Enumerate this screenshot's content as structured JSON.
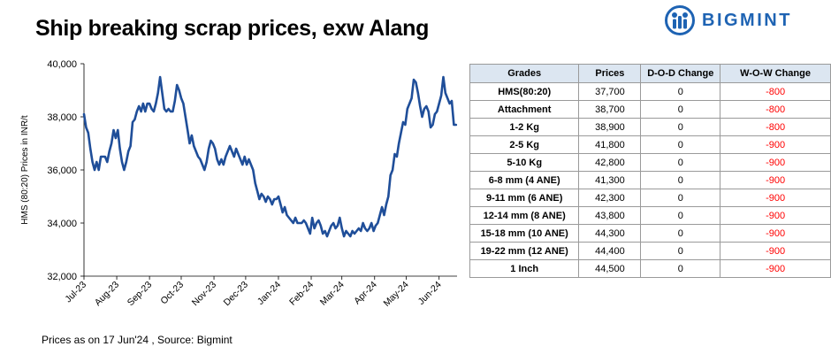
{
  "title": "Ship breaking scrap prices, exw Alang",
  "brand": {
    "name": "BIGMINT",
    "color": "#1e63b3"
  },
  "footer": "Prices as on 17 Jun'24 , Source:  Bigmint",
  "table": {
    "headers": [
      "Grades",
      "Prices",
      "D-O-D Change",
      "W-O-W Change"
    ],
    "rows": [
      [
        "HMS(80:20)",
        "37,700",
        "0",
        "-800"
      ],
      [
        "Attachment",
        "38,700",
        "0",
        "-800"
      ],
      [
        "1-2 Kg",
        "38,900",
        "0",
        "-800"
      ],
      [
        "2-5 Kg",
        "41,800",
        "0",
        "-900"
      ],
      [
        "5-10 Kg",
        "42,800",
        "0",
        "-900"
      ],
      [
        "6-8 mm (4 ANE)",
        "41,300",
        "0",
        "-900"
      ],
      [
        "9-11 mm (6 ANE)",
        "42,300",
        "0",
        "-900"
      ],
      [
        "12-14 mm (8 ANE)",
        "43,800",
        "0",
        "-900"
      ],
      [
        "15-18 mm (10 ANE)",
        "44,300",
        "0",
        "-900"
      ],
      [
        "19-22 mm (12 ANE)",
        "44,400",
        "0",
        "-900"
      ],
      [
        "1 Inch",
        "44,500",
        "0",
        "-900"
      ]
    ],
    "header_bg": "#dce6f1",
    "negative_color": "#ff0000"
  },
  "chart_data": {
    "type": "line",
    "title": "",
    "ylabel": "HMS (80:20) Prices in INR/t",
    "xlabel": "",
    "ylim": [
      32000,
      40000
    ],
    "yticks": [
      32000,
      34000,
      36000,
      38000,
      40000
    ],
    "ytick_labels": [
      "32,000",
      "34,000",
      "36,000",
      "38,000",
      "40,000"
    ],
    "xticks": [
      "Jul-23",
      "Aug-23",
      "Sep-23",
      "Oct-23",
      "Nov-23",
      "Dec-23",
      "Jan-24",
      "Feb-24",
      "Mar-24",
      "Apr-24",
      "May-24",
      "Jun-24"
    ],
    "grid": false,
    "legend": "none",
    "series": [
      {
        "color": "#1f4e99",
        "points": [
          [
            "2023-07-01",
            38100
          ],
          [
            "2023-07-03",
            37600
          ],
          [
            "2023-07-05",
            37400
          ],
          [
            "2023-07-07",
            36800
          ],
          [
            "2023-07-09",
            36300
          ],
          [
            "2023-07-11",
            36000
          ],
          [
            "2023-07-13",
            36300
          ],
          [
            "2023-07-15",
            36000
          ],
          [
            "2023-07-17",
            36500
          ],
          [
            "2023-07-19",
            36500
          ],
          [
            "2023-07-21",
            36500
          ],
          [
            "2023-07-23",
            36300
          ],
          [
            "2023-07-25",
            36700
          ],
          [
            "2023-07-27",
            37000
          ],
          [
            "2023-07-29",
            37500
          ],
          [
            "2023-07-31",
            37200
          ],
          [
            "2023-08-02",
            37500
          ],
          [
            "2023-08-04",
            36800
          ],
          [
            "2023-08-06",
            36300
          ],
          [
            "2023-08-08",
            36000
          ],
          [
            "2023-08-10",
            36300
          ],
          [
            "2023-08-12",
            36700
          ],
          [
            "2023-08-14",
            36900
          ],
          [
            "2023-08-16",
            37800
          ],
          [
            "2023-08-18",
            37900
          ],
          [
            "2023-08-20",
            38200
          ],
          [
            "2023-08-22",
            38400
          ],
          [
            "2023-08-24",
            38200
          ],
          [
            "2023-08-26",
            38500
          ],
          [
            "2023-08-28",
            38200
          ],
          [
            "2023-08-30",
            38500
          ],
          [
            "2023-09-01",
            38500
          ],
          [
            "2023-09-03",
            38300
          ],
          [
            "2023-09-05",
            38200
          ],
          [
            "2023-09-07",
            38500
          ],
          [
            "2023-09-09",
            38900
          ],
          [
            "2023-09-11",
            39500
          ],
          [
            "2023-09-13",
            38900
          ],
          [
            "2023-09-15",
            38300
          ],
          [
            "2023-09-17",
            38200
          ],
          [
            "2023-09-19",
            38300
          ],
          [
            "2023-09-21",
            38200
          ],
          [
            "2023-09-23",
            38200
          ],
          [
            "2023-09-25",
            38600
          ],
          [
            "2023-09-27",
            39200
          ],
          [
            "2023-09-29",
            39000
          ],
          [
            "2023-10-01",
            38700
          ],
          [
            "2023-10-03",
            38500
          ],
          [
            "2023-10-05",
            38000
          ],
          [
            "2023-10-07",
            37500
          ],
          [
            "2023-10-09",
            37000
          ],
          [
            "2023-10-11",
            37300
          ],
          [
            "2023-10-13",
            36900
          ],
          [
            "2023-10-15",
            36700
          ],
          [
            "2023-10-17",
            36500
          ],
          [
            "2023-10-19",
            36400
          ],
          [
            "2023-10-21",
            36200
          ],
          [
            "2023-10-23",
            36000
          ],
          [
            "2023-10-25",
            36300
          ],
          [
            "2023-10-27",
            36800
          ],
          [
            "2023-10-29",
            37100
          ],
          [
            "2023-10-31",
            37000
          ],
          [
            "2023-11-02",
            36800
          ],
          [
            "2023-11-04",
            36400
          ],
          [
            "2023-11-06",
            36200
          ],
          [
            "2023-11-08",
            36400
          ],
          [
            "2023-11-10",
            36200
          ],
          [
            "2023-11-12",
            36500
          ],
          [
            "2023-11-14",
            36700
          ],
          [
            "2023-11-16",
            36900
          ],
          [
            "2023-11-18",
            36700
          ],
          [
            "2023-11-20",
            36500
          ],
          [
            "2023-11-22",
            36800
          ],
          [
            "2023-11-24",
            36600
          ],
          [
            "2023-11-26",
            36400
          ],
          [
            "2023-11-28",
            36200
          ],
          [
            "2023-11-30",
            36500
          ],
          [
            "2023-12-02",
            36200
          ],
          [
            "2023-12-04",
            36400
          ],
          [
            "2023-12-06",
            36200
          ],
          [
            "2023-12-08",
            36000
          ],
          [
            "2023-12-10",
            35500
          ],
          [
            "2023-12-12",
            35200
          ],
          [
            "2023-12-14",
            34900
          ],
          [
            "2023-12-16",
            35100
          ],
          [
            "2023-12-18",
            35000
          ],
          [
            "2023-12-20",
            34800
          ],
          [
            "2023-12-22",
            35000
          ],
          [
            "2023-12-24",
            34900
          ],
          [
            "2023-12-26",
            34700
          ],
          [
            "2023-12-28",
            34900
          ],
          [
            "2023-12-30",
            34900
          ],
          [
            "2024-01-01",
            35000
          ],
          [
            "2024-01-03",
            34700
          ],
          [
            "2024-01-05",
            34400
          ],
          [
            "2024-01-07",
            34600
          ],
          [
            "2024-01-09",
            34300
          ],
          [
            "2024-01-11",
            34200
          ],
          [
            "2024-01-13",
            34100
          ],
          [
            "2024-01-15",
            34000
          ],
          [
            "2024-01-17",
            34200
          ],
          [
            "2024-01-19",
            34000
          ],
          [
            "2024-01-21",
            34000
          ],
          [
            "2024-01-23",
            34000
          ],
          [
            "2024-01-25",
            34100
          ],
          [
            "2024-01-27",
            34000
          ],
          [
            "2024-01-29",
            33800
          ],
          [
            "2024-01-31",
            33600
          ],
          [
            "2024-02-02",
            34200
          ],
          [
            "2024-02-04",
            33800
          ],
          [
            "2024-02-06",
            34000
          ],
          [
            "2024-02-08",
            34100
          ],
          [
            "2024-02-10",
            33900
          ],
          [
            "2024-02-12",
            33600
          ],
          [
            "2024-02-14",
            33700
          ],
          [
            "2024-02-16",
            33500
          ],
          [
            "2024-02-18",
            33700
          ],
          [
            "2024-02-20",
            33900
          ],
          [
            "2024-02-22",
            34000
          ],
          [
            "2024-02-24",
            33800
          ],
          [
            "2024-02-26",
            33900
          ],
          [
            "2024-02-28",
            34200
          ],
          [
            "2024-03-01",
            33800
          ],
          [
            "2024-03-03",
            33500
          ],
          [
            "2024-03-05",
            33700
          ],
          [
            "2024-03-07",
            33600
          ],
          [
            "2024-03-09",
            33500
          ],
          [
            "2024-03-11",
            33700
          ],
          [
            "2024-03-13",
            33600
          ],
          [
            "2024-03-15",
            33700
          ],
          [
            "2024-03-17",
            33800
          ],
          [
            "2024-03-19",
            33700
          ],
          [
            "2024-03-21",
            34000
          ],
          [
            "2024-03-23",
            33800
          ],
          [
            "2024-03-25",
            33700
          ],
          [
            "2024-03-27",
            33800
          ],
          [
            "2024-03-29",
            34000
          ],
          [
            "2024-03-31",
            33700
          ],
          [
            "2024-04-02",
            33900
          ],
          [
            "2024-04-04",
            34000
          ],
          [
            "2024-04-06",
            34300
          ],
          [
            "2024-04-08",
            34600
          ],
          [
            "2024-04-10",
            34300
          ],
          [
            "2024-04-12",
            34700
          ],
          [
            "2024-04-14",
            35000
          ],
          [
            "2024-04-16",
            35800
          ],
          [
            "2024-04-18",
            36000
          ],
          [
            "2024-04-20",
            36600
          ],
          [
            "2024-04-22",
            36500
          ],
          [
            "2024-04-24",
            37000
          ],
          [
            "2024-04-26",
            37400
          ],
          [
            "2024-04-28",
            37800
          ],
          [
            "2024-04-30",
            37700
          ],
          [
            "2024-05-02",
            38300
          ],
          [
            "2024-05-04",
            38500
          ],
          [
            "2024-05-06",
            38700
          ],
          [
            "2024-05-08",
            39400
          ],
          [
            "2024-05-10",
            39300
          ],
          [
            "2024-05-12",
            38900
          ],
          [
            "2024-05-14",
            38400
          ],
          [
            "2024-05-16",
            38000
          ],
          [
            "2024-05-18",
            38300
          ],
          [
            "2024-05-20",
            38400
          ],
          [
            "2024-05-22",
            38200
          ],
          [
            "2024-05-24",
            37600
          ],
          [
            "2024-05-26",
            37700
          ],
          [
            "2024-05-28",
            38100
          ],
          [
            "2024-05-30",
            38200
          ],
          [
            "2024-06-01",
            38500
          ],
          [
            "2024-06-03",
            38800
          ],
          [
            "2024-06-05",
            39500
          ],
          [
            "2024-06-07",
            38900
          ],
          [
            "2024-06-09",
            38700
          ],
          [
            "2024-06-11",
            38500
          ],
          [
            "2024-06-13",
            38600
          ],
          [
            "2024-06-15",
            37700
          ],
          [
            "2024-06-17",
            37700
          ]
        ]
      }
    ]
  }
}
